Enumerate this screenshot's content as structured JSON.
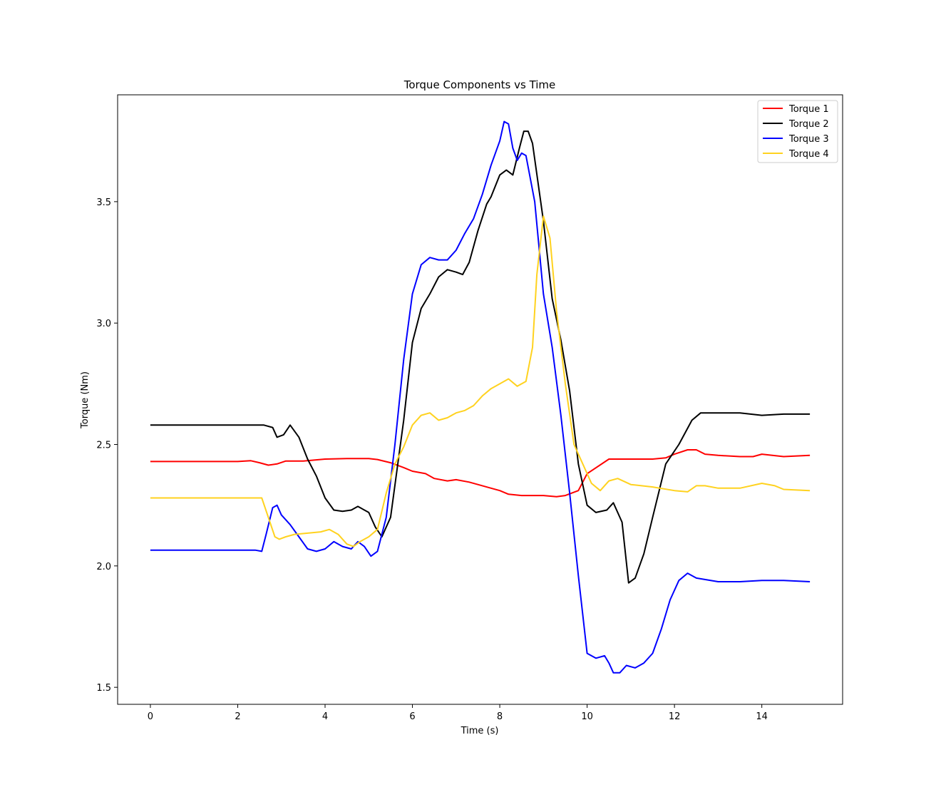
{
  "chart_data": {
    "type": "line",
    "title": "Torque Components vs Time",
    "xlabel": "Time (s)",
    "ylabel": "Torque (Nm)",
    "xlim": [
      -0.75,
      15.85
    ],
    "ylim": [
      1.43,
      3.94
    ],
    "xticks": [
      0,
      2,
      4,
      6,
      8,
      10,
      12,
      14
    ],
    "yticks": [
      1.5,
      2.0,
      2.5,
      3.0,
      3.5
    ],
    "xtick_labels": [
      "0",
      "2",
      "4",
      "6",
      "8",
      "10",
      "12",
      "14"
    ],
    "ytick_labels": [
      "1.5",
      "2.0",
      "2.5",
      "3.0",
      "3.5"
    ],
    "grid": false,
    "legend_position": "top-right",
    "series": [
      {
        "name": "Torque 1",
        "color": "#ff0000",
        "x": [
          0,
          0.5,
          1,
          1.5,
          2,
          2.3,
          2.5,
          2.7,
          2.9,
          3.1,
          3.5,
          4,
          4.5,
          5,
          5.2,
          5.5,
          5.8,
          6,
          6.3,
          6.5,
          6.8,
          7,
          7.3,
          7.5,
          7.8,
          8,
          8.2,
          8.5,
          9,
          9.3,
          9.5,
          9.8,
          10,
          10.5,
          11,
          11.5,
          11.8,
          12,
          12.3,
          12.5,
          12.7,
          13,
          13.5,
          13.8,
          14,
          14.5,
          15.1
        ],
        "y": [
          2.43,
          2.43,
          2.43,
          2.43,
          2.43,
          2.433,
          2.425,
          2.415,
          2.42,
          2.432,
          2.432,
          2.44,
          2.442,
          2.442,
          2.438,
          2.425,
          2.405,
          2.39,
          2.38,
          2.36,
          2.35,
          2.355,
          2.345,
          2.335,
          2.32,
          2.31,
          2.295,
          2.29,
          2.29,
          2.285,
          2.29,
          2.31,
          2.38,
          2.44,
          2.44,
          2.44,
          2.445,
          2.46,
          2.478,
          2.478,
          2.46,
          2.455,
          2.45,
          2.45,
          2.46,
          2.45,
          2.455
        ]
      },
      {
        "name": "Torque 2",
        "color": "#000000",
        "x": [
          0,
          0.5,
          1,
          1.5,
          2,
          2.4,
          2.6,
          2.8,
          2.9,
          3.05,
          3.2,
          3.4,
          3.6,
          3.8,
          4,
          4.2,
          4.4,
          4.6,
          4.75,
          5,
          5.15,
          5.3,
          5.5,
          5.8,
          6,
          6.2,
          6.4,
          6.6,
          6.8,
          7,
          7.15,
          7.3,
          7.5,
          7.7,
          7.8,
          8,
          8.15,
          8.3,
          8.45,
          8.55,
          8.65,
          8.75,
          9,
          9.2,
          9.4,
          9.6,
          9.8,
          10,
          10.2,
          10.45,
          10.6,
          10.8,
          10.95,
          11.1,
          11.3,
          11.5,
          11.8,
          12.1,
          12.4,
          12.6,
          13,
          13.5,
          14,
          14.5,
          15.1
        ],
        "y": [
          2.58,
          2.58,
          2.58,
          2.58,
          2.58,
          2.58,
          2.58,
          2.57,
          2.53,
          2.54,
          2.58,
          2.53,
          2.44,
          2.37,
          2.28,
          2.23,
          2.225,
          2.23,
          2.245,
          2.22,
          2.16,
          2.12,
          2.2,
          2.6,
          2.92,
          3.06,
          3.12,
          3.19,
          3.22,
          3.21,
          3.2,
          3.25,
          3.38,
          3.49,
          3.52,
          3.61,
          3.63,
          3.61,
          3.72,
          3.79,
          3.79,
          3.74,
          3.42,
          3.1,
          2.93,
          2.72,
          2.42,
          2.25,
          2.22,
          2.23,
          2.26,
          2.18,
          1.93,
          1.95,
          2.05,
          2.2,
          2.42,
          2.5,
          2.6,
          2.63,
          2.63,
          2.63,
          2.62,
          2.625,
          2.625
        ]
      },
      {
        "name": "Torque 3",
        "color": "#0000ff",
        "x": [
          0,
          0.5,
          1,
          1.5,
          2,
          2.4,
          2.55,
          2.65,
          2.8,
          2.9,
          3.0,
          3.2,
          3.4,
          3.6,
          3.8,
          4,
          4.2,
          4.4,
          4.6,
          4.75,
          4.9,
          5.05,
          5.2,
          5.4,
          5.6,
          5.8,
          6.0,
          6.2,
          6.4,
          6.6,
          6.8,
          7.0,
          7.2,
          7.4,
          7.6,
          7.8,
          8.0,
          8.1,
          8.2,
          8.3,
          8.4,
          8.5,
          8.6,
          8.8,
          9.0,
          9.2,
          9.4,
          9.6,
          9.8,
          10,
          10.2,
          10.4,
          10.5,
          10.6,
          10.75,
          10.9,
          11.1,
          11.3,
          11.5,
          11.7,
          11.9,
          12.1,
          12.3,
          12.5,
          13,
          13.5,
          14,
          14.5,
          15.1
        ],
        "y": [
          2.065,
          2.065,
          2.065,
          2.065,
          2.065,
          2.065,
          2.06,
          2.13,
          2.24,
          2.25,
          2.21,
          2.17,
          2.12,
          2.07,
          2.06,
          2.07,
          2.1,
          2.08,
          2.07,
          2.1,
          2.08,
          2.04,
          2.06,
          2.2,
          2.5,
          2.85,
          3.12,
          3.24,
          3.27,
          3.26,
          3.26,
          3.3,
          3.37,
          3.43,
          3.53,
          3.65,
          3.75,
          3.83,
          3.82,
          3.72,
          3.67,
          3.7,
          3.69,
          3.5,
          3.12,
          2.9,
          2.62,
          2.3,
          1.96,
          1.64,
          1.62,
          1.63,
          1.6,
          1.56,
          1.56,
          1.59,
          1.58,
          1.6,
          1.64,
          1.74,
          1.86,
          1.94,
          1.97,
          1.95,
          1.935,
          1.935,
          1.94,
          1.94,
          1.935
        ]
      },
      {
        "name": "Torque 4",
        "color": "#ffd21f",
        "x": [
          0,
          0.5,
          1,
          1.5,
          2,
          2.4,
          2.55,
          2.7,
          2.85,
          2.95,
          3.1,
          3.3,
          3.6,
          3.9,
          4.1,
          4.3,
          4.5,
          4.65,
          4.8,
          5.0,
          5.2,
          5.4,
          5.6,
          5.8,
          6.0,
          6.2,
          6.4,
          6.6,
          6.8,
          7.0,
          7.2,
          7.4,
          7.6,
          7.8,
          8.0,
          8.2,
          8.4,
          8.6,
          8.75,
          8.85,
          9.0,
          9.15,
          9.3,
          9.5,
          9.7,
          9.9,
          10.1,
          10.3,
          10.5,
          10.7,
          11,
          11.5,
          12,
          12.3,
          12.5,
          12.7,
          13,
          13.5,
          14,
          14.3,
          14.5,
          15.1
        ],
        "y": [
          2.28,
          2.28,
          2.28,
          2.28,
          2.28,
          2.28,
          2.28,
          2.2,
          2.12,
          2.11,
          2.12,
          2.13,
          2.135,
          2.14,
          2.15,
          2.13,
          2.09,
          2.08,
          2.1,
          2.12,
          2.15,
          2.3,
          2.42,
          2.49,
          2.58,
          2.62,
          2.63,
          2.6,
          2.61,
          2.63,
          2.64,
          2.66,
          2.7,
          2.73,
          2.75,
          2.77,
          2.74,
          2.76,
          2.9,
          3.2,
          3.44,
          3.35,
          3.05,
          2.75,
          2.5,
          2.42,
          2.34,
          2.31,
          2.35,
          2.36,
          2.335,
          2.325,
          2.31,
          2.305,
          2.33,
          2.33,
          2.32,
          2.32,
          2.34,
          2.33,
          2.315,
          2.31
        ]
      }
    ]
  }
}
